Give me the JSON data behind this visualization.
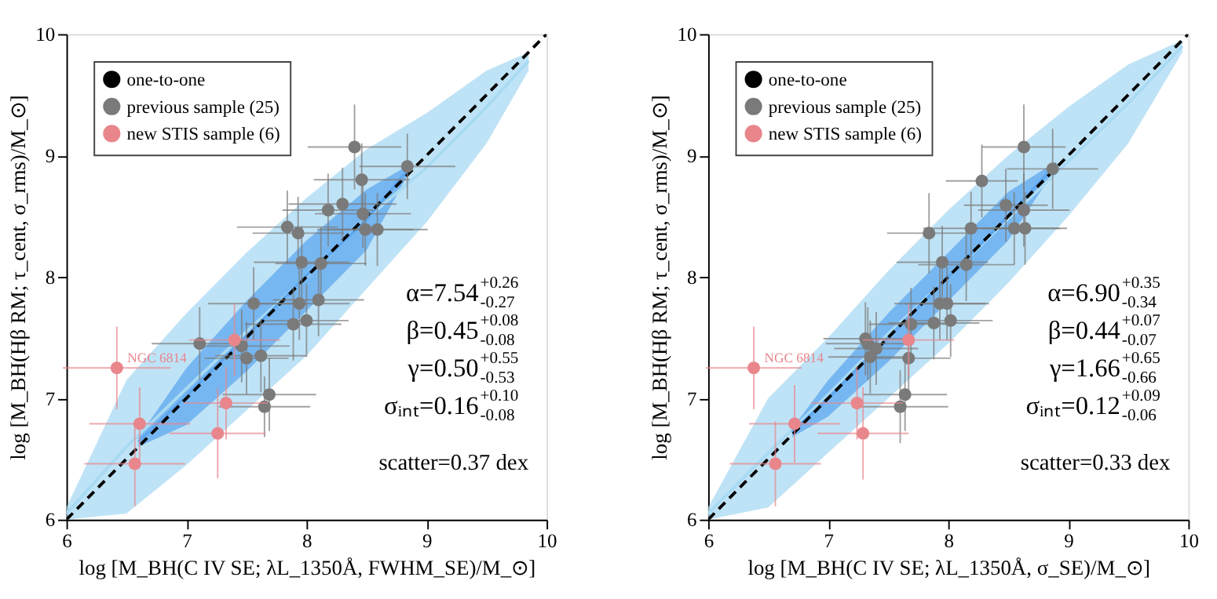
{
  "chart_data": [
    {
      "type": "scatter",
      "xlabel": "log [M_BH(C IV SE; λL_1350Å, FWHM_SE)/M_⊙]",
      "ylabel": "log [M_BH(Hβ RM; τ_cent, σ_rms)/M_⊙]",
      "xlim": [
        6,
        10
      ],
      "ylim": [
        6,
        10
      ],
      "xticks": [
        6,
        7,
        8,
        9,
        10
      ],
      "yticks": [
        6,
        7,
        8,
        9,
        10
      ],
      "grid": false,
      "legend": "top left",
      "series": [
        {
          "type": "line",
          "color": "#a9daf3",
          "x": [
            6.0,
            6.5,
            7.0,
            7.5,
            8.0,
            8.5,
            9.0,
            9.5,
            9.85
          ],
          "values": [
            6.05,
            6.6,
            7.08,
            7.55,
            8.0,
            8.48,
            8.9,
            9.4,
            9.78
          ],
          "lower": [
            6.0,
            6.05,
            6.45,
            6.9,
            7.35,
            7.9,
            8.45,
            9.1,
            9.7
          ],
          "upper": [
            6.1,
            7.15,
            7.7,
            8.2,
            8.65,
            9.05,
            9.35,
            9.7,
            9.85
          ]
        },
        {
          "type": "line",
          "color": "#5fa8ef",
          "x": [
            6.6,
            7.0,
            7.5,
            8.0,
            8.5,
            8.85
          ],
          "values": [
            6.64,
            7.02,
            7.51,
            8.01,
            8.47,
            8.89
          ],
          "lower": [
            6.6,
            6.78,
            7.22,
            7.72,
            8.22,
            8.85
          ],
          "upper": [
            6.68,
            7.25,
            7.8,
            8.3,
            8.72,
            8.92
          ]
        },
        {
          "name": "one-to-one",
          "type": "line",
          "line_style": "dashed",
          "color": "#000000",
          "x": [
            6,
            10
          ],
          "values": [
            6,
            10
          ]
        },
        {
          "name": "previous sample (25)",
          "marker": "circle",
          "color": "#7a7a7a",
          "x": [
            8.4,
            8.84,
            8.46,
            8.18,
            8.3,
            8.47,
            7.84,
            7.93,
            8.49,
            8.59,
            7.96,
            8.12,
            7.56,
            7.94,
            8.1,
            7.89,
            8.0,
            7.11,
            7.46,
            7.5,
            7.62,
            7.69,
            7.65
          ],
          "values": [
            9.07,
            8.91,
            8.8,
            8.55,
            8.6,
            8.52,
            8.41,
            8.36,
            8.39,
            8.39,
            8.12,
            8.11,
            7.78,
            7.78,
            7.81,
            7.61,
            7.64,
            7.45,
            7.43,
            7.33,
            7.35,
            7.03,
            6.93
          ],
          "xerrors": [
            0.39,
            0.4,
            0.4,
            0.38,
            0.45,
            0.4,
            0.42,
            0.38,
            0.4,
            0.42,
            0.4,
            0.38,
            0.38,
            0.42,
            0.38,
            0.4,
            0.35,
            0.4,
            0.4,
            0.35,
            0.38,
            0.39,
            0.38
          ],
          "errors": [
            0.35,
            0.27,
            0.3,
            0.3,
            0.3,
            0.28,
            0.3,
            0.3,
            0.3,
            0.3,
            0.3,
            0.3,
            0.3,
            0.3,
            0.3,
            0.3,
            0.3,
            0.3,
            0.3,
            0.3,
            0.3,
            0.3,
            0.25
          ]
        },
        {
          "name": "new STIS sample (6)",
          "marker": "circle",
          "color": "#e8868c",
          "x": [
            6.42,
            6.61,
            6.57,
            7.26,
            7.33,
            7.4
          ],
          "values": [
            7.25,
            6.79,
            6.46,
            6.71,
            6.96,
            7.48
          ],
          "xerrors": [
            0.45,
            0.42,
            0.42,
            0.4,
            0.35,
            0.38
          ],
          "errors": [
            0.34,
            0.3,
            0.35,
            0.37,
            0.3,
            0.3
          ]
        }
      ],
      "annotations": [
        {
          "text": "NGC 6814",
          "x": 6.42,
          "y": 7.25
        },
        "α=7.54$^{+0.26}$$_{-0.27}$",
        "β=0.45$^{+0.08}$$_{-0.08}$",
        "γ=0.50$^{+0.55}$$_{-0.53}$",
        "σᵢₙₜ=0.16$^{+0.10}$$_{-0.08}$",
        "scatter=0.37 dex"
      ]
    },
    {
      "type": "scatter",
      "xlabel": "log [M_BH(C IV SE; λL_1350Å, σ_SE)/M_⊙]",
      "ylabel": "log [M_BH(Hβ RM; τ_cent, σ_rms)/M_⊙]",
      "xlim": [
        6,
        10
      ],
      "ylim": [
        6,
        10
      ],
      "xticks": [
        6,
        7,
        8,
        9,
        10
      ],
      "yticks": [
        6,
        7,
        8,
        9,
        10
      ],
      "grid": false,
      "legend": "top left",
      "series": [
        {
          "type": "line",
          "color": "#a9daf3",
          "x": [
            6.0,
            6.5,
            7.0,
            7.5,
            8.0,
            8.5,
            9.0,
            9.5,
            9.95
          ],
          "values": [
            6.05,
            6.55,
            7.03,
            7.53,
            8.0,
            8.48,
            8.95,
            9.43,
            9.9
          ],
          "lower": [
            6.0,
            6.1,
            6.55,
            7.0,
            7.45,
            7.95,
            8.5,
            9.1,
            9.85
          ],
          "upper": [
            6.1,
            7.0,
            7.5,
            8.05,
            8.55,
            9.0,
            9.4,
            9.75,
            9.95
          ]
        },
        {
          "type": "line",
          "color": "#5fa8ef",
          "x": [
            6.7,
            7.0,
            7.5,
            8.0,
            8.5,
            8.9
          ],
          "values": [
            6.72,
            7.0,
            7.5,
            8.0,
            8.5,
            8.93
          ],
          "lower": [
            6.68,
            6.85,
            7.3,
            7.8,
            8.3,
            8.9
          ],
          "upper": [
            6.75,
            7.15,
            7.7,
            8.2,
            8.7,
            8.95
          ]
        },
        {
          "name": "one-to-one",
          "type": "line",
          "line_style": "dashed",
          "color": "#000000",
          "x": [
            6,
            10
          ],
          "values": [
            6,
            10
          ]
        },
        {
          "name": "previous sample (25)",
          "marker": "circle",
          "color": "#7a7a7a",
          "x": [
            8.63,
            8.87,
            8.28,
            8.48,
            8.63,
            8.64,
            8.55,
            8.19,
            7.84,
            7.95,
            8.15,
            7.93,
            7.99,
            7.69,
            7.88,
            8.02,
            7.31,
            7.33,
            7.4,
            7.35,
            7.67,
            7.64,
            7.6
          ],
          "values": [
            9.07,
            8.89,
            8.79,
            8.59,
            8.55,
            8.4,
            8.4,
            8.4,
            8.36,
            8.12,
            8.1,
            7.78,
            7.78,
            7.61,
            7.62,
            7.64,
            7.49,
            7.45,
            7.41,
            7.34,
            7.33,
            7.03,
            6.93
          ],
          "xerrors": [
            0.35,
            0.38,
            0.3,
            0.35,
            0.38,
            0.35,
            0.38,
            0.4,
            0.35,
            0.38,
            0.4,
            0.38,
            0.35,
            0.35,
            0.38,
            0.35,
            0.35,
            0.35,
            0.35,
            0.35,
            0.35,
            0.35,
            0.4
          ],
          "errors": [
            0.35,
            0.33,
            0.3,
            0.3,
            0.3,
            0.3,
            0.3,
            0.3,
            0.33,
            0.3,
            0.3,
            0.3,
            0.3,
            0.3,
            0.3,
            0.3,
            0.3,
            0.3,
            0.3,
            0.3,
            0.3,
            0.3,
            0.3
          ]
        },
        {
          "name": "new STIS sample (6)",
          "marker": "circle",
          "color": "#e8868c",
          "x": [
            6.38,
            6.72,
            6.56,
            7.24,
            7.29,
            7.67
          ],
          "values": [
            7.25,
            6.79,
            6.46,
            6.96,
            6.71,
            7.48
          ],
          "xerrors": [
            0.4,
            0.38,
            0.38,
            0.38,
            0.38,
            0.38
          ],
          "errors": [
            0.34,
            0.32,
            0.35,
            0.3,
            0.38,
            0.3
          ]
        }
      ],
      "annotations": [
        {
          "text": "NGC 6814",
          "x": 6.38,
          "y": 7.25
        },
        "α=6.90$^{+0.35}$$_{-0.34}$",
        "β=0.44$^{+0.07}$$_{-0.07}$",
        "γ=1.66$^{+0.65}$$_{-0.66}$",
        "σᵢₙₜ=0.12$^{+0.09}$$_{-0.06}$",
        "scatter=0.33 dex"
      ]
    }
  ]
}
